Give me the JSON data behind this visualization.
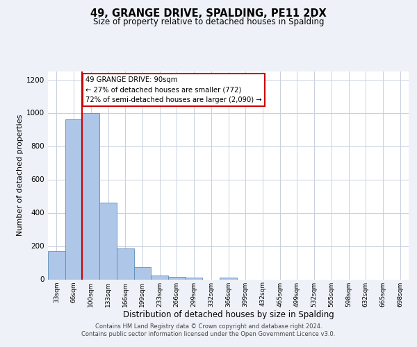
{
  "title": "49, GRANGE DRIVE, SPALDING, PE11 2DX",
  "subtitle": "Size of property relative to detached houses in Spalding",
  "xlabel": "Distribution of detached houses by size in Spalding",
  "ylabel": "Number of detached properties",
  "bar_labels": [
    "33sqm",
    "66sqm",
    "100sqm",
    "133sqm",
    "166sqm",
    "199sqm",
    "233sqm",
    "266sqm",
    "299sqm",
    "332sqm",
    "366sqm",
    "399sqm",
    "432sqm",
    "465sqm",
    "499sqm",
    "532sqm",
    "565sqm",
    "598sqm",
    "632sqm",
    "665sqm",
    "698sqm"
  ],
  "bar_values": [
    170,
    960,
    1000,
    460,
    185,
    75,
    25,
    15,
    10,
    0,
    10,
    0,
    0,
    0,
    0,
    0,
    0,
    0,
    0,
    0,
    0
  ],
  "bar_color": "#aec6e8",
  "bar_edge_color": "#5b8db8",
  "annotation_box_text": "49 GRANGE DRIVE: 90sqm\n← 27% of detached houses are smaller (772)\n72% of semi-detached houses are larger (2,090) →",
  "ylim": [
    0,
    1250
  ],
  "yticks": [
    0,
    200,
    400,
    600,
    800,
    1000,
    1200
  ],
  "bg_color": "#eef2f8",
  "plot_bg_color": "#ffffff",
  "grid_color": "#c8d0de",
  "red_line_color": "#cc0000",
  "footer_line1": "Contains HM Land Registry data © Crown copyright and database right 2024.",
  "footer_line2": "Contains public sector information licensed under the Open Government Licence v3.0."
}
